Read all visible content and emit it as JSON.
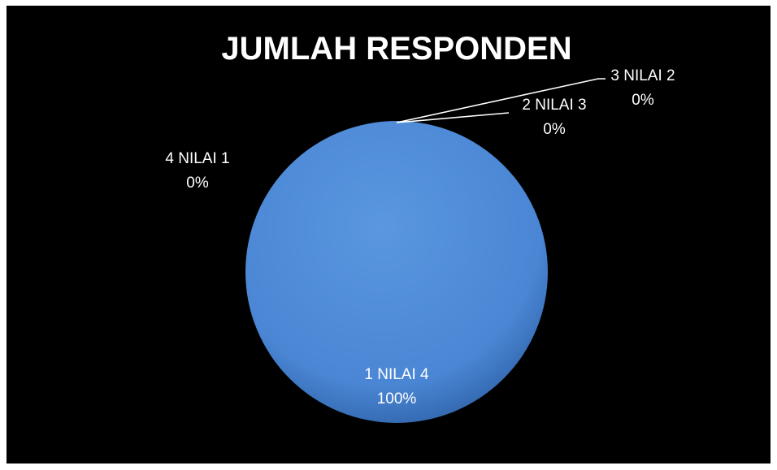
{
  "chart_data": {
    "type": "pie",
    "title": "JUMLAH RESPONDEN",
    "slices": [
      {
        "category": "1 NILAI 4",
        "value": 100,
        "percent_label": "100%"
      },
      {
        "category": "2 NILAI 3",
        "value": 0,
        "percent_label": "0%"
      },
      {
        "category": "3 NILAI 2",
        "value": 0,
        "percent_label": "0%"
      },
      {
        "category": "4 NILAI 1",
        "value": 0,
        "percent_label": "0%"
      }
    ],
    "legend": "none",
    "colors": {
      "background": "#000000",
      "slice_main": "#4a86d4",
      "slice_edge": "#2f62a8",
      "leader_lines": "#ffffff",
      "text": "#ffffff"
    }
  }
}
